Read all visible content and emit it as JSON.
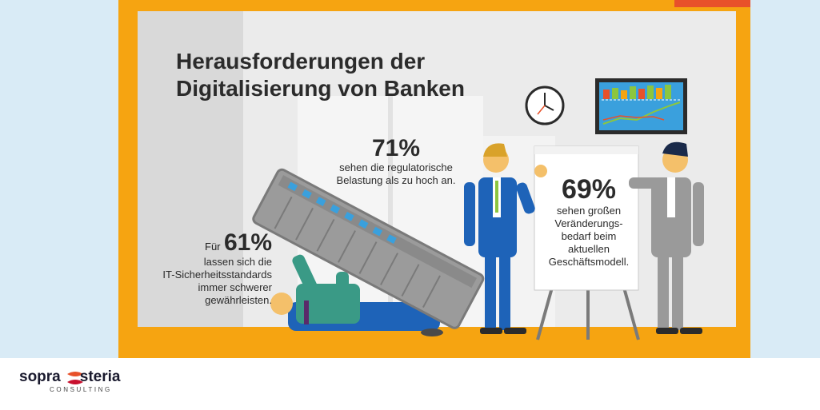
{
  "title": {
    "line1": "Herausforderungen der",
    "line2": "Digitalisierung von Banken"
  },
  "stat_71": {
    "value": "71%",
    "text_line1": "sehen die regulatorische",
    "text_line2": "Belastung als zu hoch an."
  },
  "stat_61": {
    "prefix": "Für",
    "value": "61%",
    "text_line1": "lassen sich die",
    "text_line2": "IT-Sicherheitsstandards",
    "text_line3": "immer schwerer",
    "text_line4": "gewährleisten."
  },
  "stat_69": {
    "value": "69%",
    "text_line1": "sehen großen",
    "text_line2": "Veränderungs-",
    "text_line3": "bedarf beim",
    "text_line4": "aktuellen",
    "text_line5": "Geschäftsmodell."
  },
  "logo": {
    "word1": "sopra",
    "word2": "steria",
    "subline": "CONSULTING"
  },
  "colors": {
    "frame_orange": "#f6a411",
    "accent_red": "#e8512a",
    "wall": "#ebebeb",
    "sky": "#d9ebf6",
    "blue_suit": "#1e63b8",
    "grey_suit": "#9a9a9a",
    "teal_shirt": "#3a9a86"
  }
}
